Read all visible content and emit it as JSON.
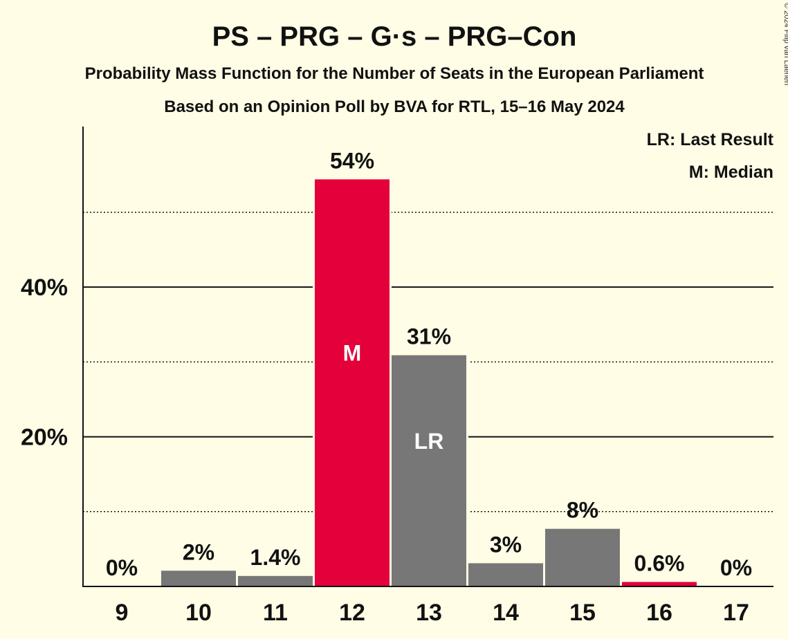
{
  "title": "PS – PRG – G·s – PRG–Con",
  "subtitle1": "Probability Mass Function for the Number of Seats in the European Parliament",
  "subtitle2": "Based on an Opinion Poll by BVA for RTL, 15–16 May 2024",
  "copyright": "© 2024 Filip van Laenen",
  "legend": {
    "lr": "LR: Last Result",
    "m": "M: Median"
  },
  "colors": {
    "background": "#fffde5",
    "bar": "#777777",
    "highlight": "#e4003b",
    "text": "#111111"
  },
  "chart_data": {
    "type": "bar",
    "categories": [
      "9",
      "10",
      "11",
      "12",
      "13",
      "14",
      "15",
      "16",
      "17"
    ],
    "values": [
      0,
      2.1,
      1.4,
      54.4,
      30.9,
      3.1,
      7.7,
      0.6,
      0
    ],
    "value_labels": [
      "0%",
      "2%",
      "1.4%",
      "54%",
      "31%",
      "3%",
      "8%",
      "0.6%",
      "0%"
    ],
    "highlight": [
      false,
      false,
      false,
      true,
      false,
      false,
      false,
      true,
      false
    ],
    "markers": {
      "3": "M",
      "4": "LR"
    },
    "ylim": [
      0,
      59
    ],
    "yticks": [
      20,
      40
    ],
    "ytick_labels": [
      "20%",
      "40%"
    ],
    "minor_gridlines": [
      10,
      30,
      50
    ],
    "legend_position": "top-right"
  }
}
